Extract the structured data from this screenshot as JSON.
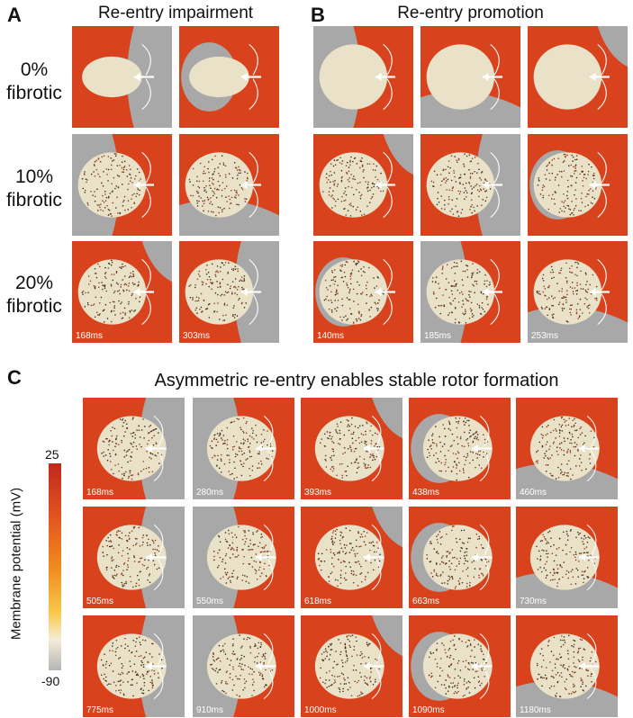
{
  "panels": {
    "a": {
      "letter": "A",
      "title": "Re-entry impairment"
    },
    "b": {
      "letter": "B",
      "title": "Re-entry promotion"
    },
    "c": {
      "letter": "C",
      "title": "Asymmetric re-entry enables stable rotor formation"
    }
  },
  "row_labels": [
    {
      "line1": "0%",
      "line2": "fibrotic"
    },
    {
      "line1": "10%",
      "line2": "fibrotic"
    },
    {
      "line1": "20%",
      "line2": "fibrotic"
    }
  ],
  "time_labels": {
    "a": [
      "168ms",
      "303ms"
    ],
    "b": [
      "140ms",
      "185ms",
      "253ms"
    ],
    "c": [
      "168ms",
      "280ms",
      "393ms",
      "438ms",
      "460ms",
      "505ms",
      "550ms",
      "618ms",
      "663ms",
      "730ms",
      "775ms",
      "910ms",
      "1000ms",
      "1090ms",
      "1180ms"
    ]
  },
  "colorbar": {
    "title": "Membrane potential (mV)",
    "max_label": "25",
    "min_label": "-90",
    "colors": {
      "high": "#c0281c",
      "mid": "#f08a1e",
      "low_pale": "#f5edd8",
      "rest": "#b5b5b5"
    }
  },
  "tile_colors": {
    "excited": "#d8431e",
    "tissue": "#e9e2c8",
    "refractory": "#a8a8a8"
  }
}
